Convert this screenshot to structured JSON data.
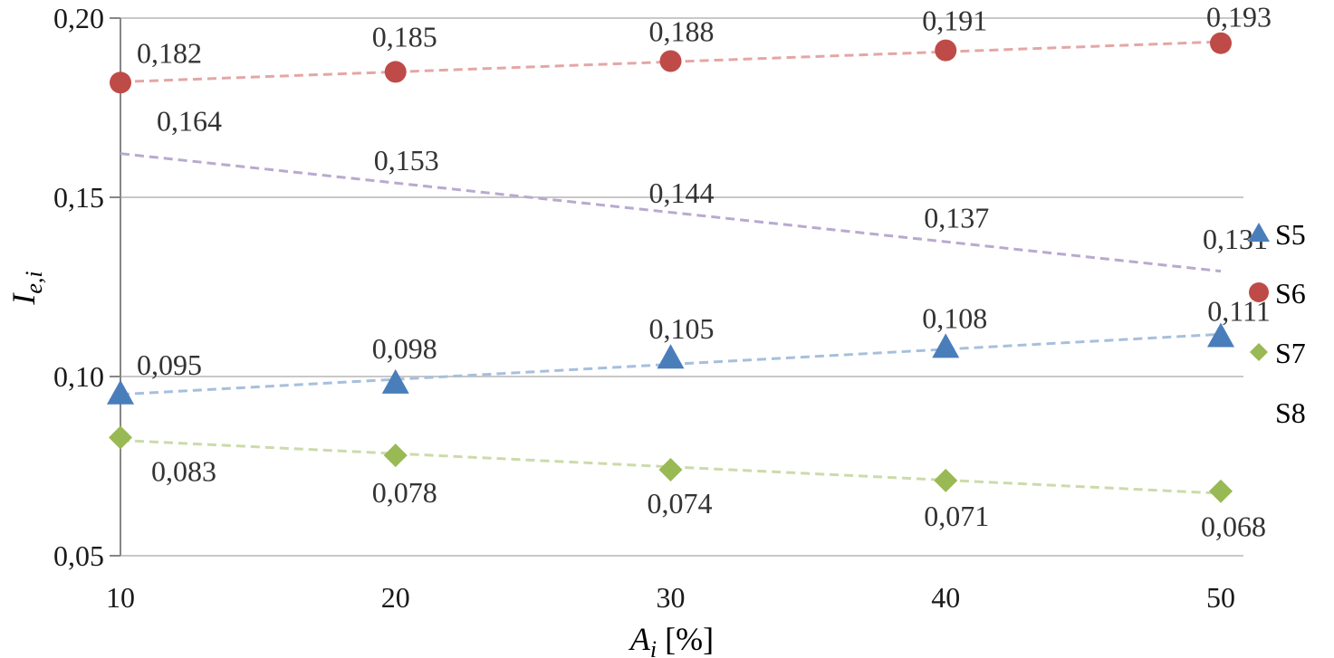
{
  "chart_data": {
    "type": "scatter",
    "x": [
      10,
      20,
      30,
      40,
      50
    ],
    "x_tick_labels": [
      "10",
      "20",
      "30",
      "40",
      "50"
    ],
    "y_tick_labels": [
      "0,05",
      "0,10",
      "0,15",
      "0,20"
    ],
    "ylim": [
      0.05,
      0.2
    ],
    "xlim": [
      10,
      50
    ],
    "grid": "horizontal",
    "legend_position": "right",
    "xlabel": {
      "main": "A",
      "sub": "i",
      "unit": " [%]"
    },
    "ylabel": {
      "main": "I",
      "sub": "e,i"
    },
    "series": [
      {
        "name": "S5",
        "marker": "triangle",
        "color": "#4a7ebb",
        "trend_color": "#a6bfdd",
        "values": [
          0.095,
          0.098,
          0.105,
          0.108,
          0.111
        ],
        "labels": [
          "0,095",
          "0,098",
          "0,105",
          "0,108",
          "0,111"
        ],
        "label_position": "above"
      },
      {
        "name": "S6",
        "marker": "circle",
        "color": "#be4b48",
        "trend_color": "#e3a7a5",
        "values": [
          0.182,
          0.185,
          0.188,
          0.191,
          0.193
        ],
        "labels": [
          "0,182",
          "0,185",
          "0,188",
          "0,191",
          "0,193"
        ],
        "label_position": "above"
      },
      {
        "name": "S7",
        "marker": "diamond",
        "color": "#98b954",
        "trend_color": "#cbdba9",
        "values": [
          0.083,
          0.078,
          0.074,
          0.071,
          0.068
        ],
        "labels": [
          "0,083",
          "0,078",
          "0,074",
          "0,071",
          "0,068"
        ],
        "label_position": "below"
      },
      {
        "name": "S8",
        "marker": "none",
        "color": "#7d60a0",
        "trend_color": "#b9a9cf",
        "values": [
          0.164,
          0.153,
          0.144,
          0.137,
          0.131
        ],
        "labels": [
          "0,164",
          "0,153",
          "0,144",
          "0,137",
          "0,131"
        ],
        "label_position": "above"
      }
    ]
  }
}
